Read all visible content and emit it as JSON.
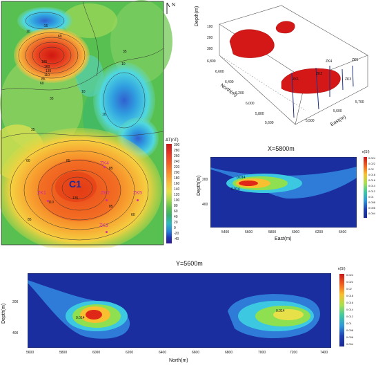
{
  "map_panel": {
    "north_label": "N",
    "anomaly_label": "C1",
    "contour_labels": [
      "10",
      "-15",
      "60",
      "185",
      "160",
      "135",
      "110",
      "85",
      "35",
      "10",
      "60",
      "35",
      "10",
      "35",
      "10",
      "60",
      "85",
      "85",
      "110",
      "135",
      "85",
      "60",
      "85"
    ],
    "boreholes": [
      "ZK1",
      "ZK2",
      "ZK3",
      "ZK4",
      "ZK5"
    ],
    "colorbar": {
      "title": "ΔT(nT)",
      "ticks": [
        "300",
        "280",
        "260",
        "240",
        "220",
        "200",
        "180",
        "160",
        "140",
        "120",
        "100",
        "80",
        "60",
        "40",
        "20",
        "0",
        "-20",
        "-40"
      ]
    }
  },
  "block3d_panel": {
    "depth_label": "Depth(m)",
    "depth_ticks": [
      "100",
      "200",
      "300"
    ],
    "north_label": "North(m)",
    "north_ticks": [
      "6,800",
      "6,600",
      "6,400",
      "6,200",
      "6,000",
      "5,800",
      "5,600"
    ],
    "east_label": "East(m)",
    "east_ticks": [
      "5,500",
      "5,600",
      "5,700"
    ],
    "boreholes": [
      "ZK4",
      "ZK5",
      "ZK3",
      "ZK2",
      "ZK1"
    ]
  },
  "section_x_panel": {
    "title": "X=5800m",
    "ylabel": "Depth(m)",
    "xlabel": "East(m)",
    "depth_ticks": [
      "200",
      "400"
    ],
    "x_ticks": [
      "5400",
      "5600",
      "5800",
      "6000",
      "6200",
      "6400"
    ],
    "contour_labels": [
      "0.014",
      "0.014"
    ],
    "colorbar": {
      "title": "κ(SI)",
      "ticks": [
        "0.024",
        "0.022",
        "0.02",
        "0.018",
        "0.016",
        "0.014",
        "0.012",
        "0.01",
        "0.008",
        "0.006",
        "0.004"
      ]
    }
  },
  "section_y_panel": {
    "title": "Y=5600m",
    "ylabel": "Depth(m)",
    "xlabel": "North(m)",
    "depth_ticks": [
      "200",
      "400"
    ],
    "x_ticks": [
      "5600",
      "5800",
      "6000",
      "6200",
      "6400",
      "6600",
      "6800",
      "7000",
      "7200",
      "7400"
    ],
    "contour_labels": [
      "0.014",
      "0.014"
    ],
    "colorbar": {
      "title": "κ(SI)",
      "ticks": [
        "0.024",
        "0.022",
        "0.02",
        "0.018",
        "0.016",
        "0.014",
        "0.012",
        "0.01",
        "0.008",
        "0.006",
        "0.004"
      ]
    }
  }
}
